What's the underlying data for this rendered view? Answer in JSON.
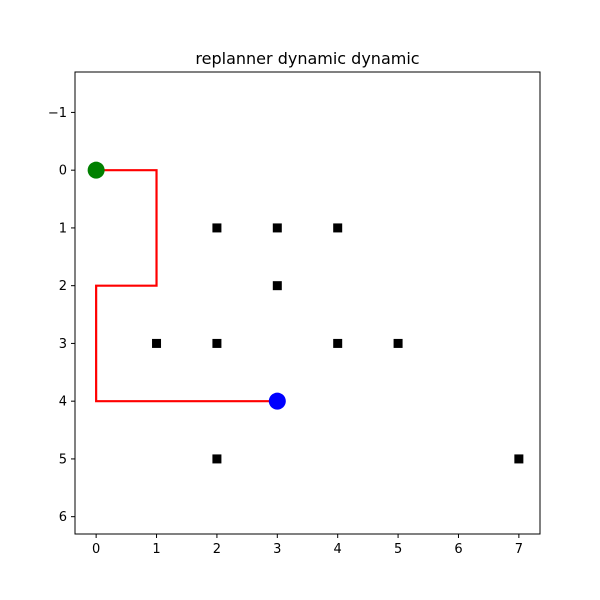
{
  "chart_data": {
    "type": "scatter",
    "title": "replanner dynamic dynamic",
    "xlabel": "",
    "ylabel": "",
    "xlim": [
      -0.35,
      7.35
    ],
    "ylim": [
      6.3,
      -1.7
    ],
    "y_inverted": true,
    "grid": false,
    "x_ticks": [
      0,
      1,
      2,
      3,
      4,
      5,
      6,
      7
    ],
    "y_ticks": [
      -1,
      0,
      1,
      2,
      3,
      4,
      5,
      6
    ],
    "x_tick_labels": [
      "0",
      "1",
      "2",
      "3",
      "4",
      "5",
      "6",
      "7"
    ],
    "y_tick_labels": [
      "−1",
      "0",
      "1",
      "2",
      "3",
      "4",
      "5",
      "6"
    ],
    "path": {
      "color": "#ff0000",
      "points": [
        [
          0,
          0
        ],
        [
          1,
          0
        ],
        [
          1,
          2
        ],
        [
          0,
          2
        ],
        [
          0,
          4
        ],
        [
          3,
          4
        ]
      ]
    },
    "obstacles": {
      "color": "#000000",
      "marker": "square",
      "points": [
        [
          2,
          1
        ],
        [
          3,
          1
        ],
        [
          4,
          1
        ],
        [
          3,
          2
        ],
        [
          1,
          3
        ],
        [
          2,
          3
        ],
        [
          4,
          3
        ],
        [
          5,
          3
        ],
        [
          2,
          5
        ],
        [
          7,
          5
        ]
      ]
    },
    "start": {
      "color": "#008000",
      "marker": "circle",
      "point": [
        0,
        0
      ]
    },
    "goal": {
      "color": "#0000ff",
      "marker": "circle",
      "point": [
        3,
        4
      ]
    }
  }
}
